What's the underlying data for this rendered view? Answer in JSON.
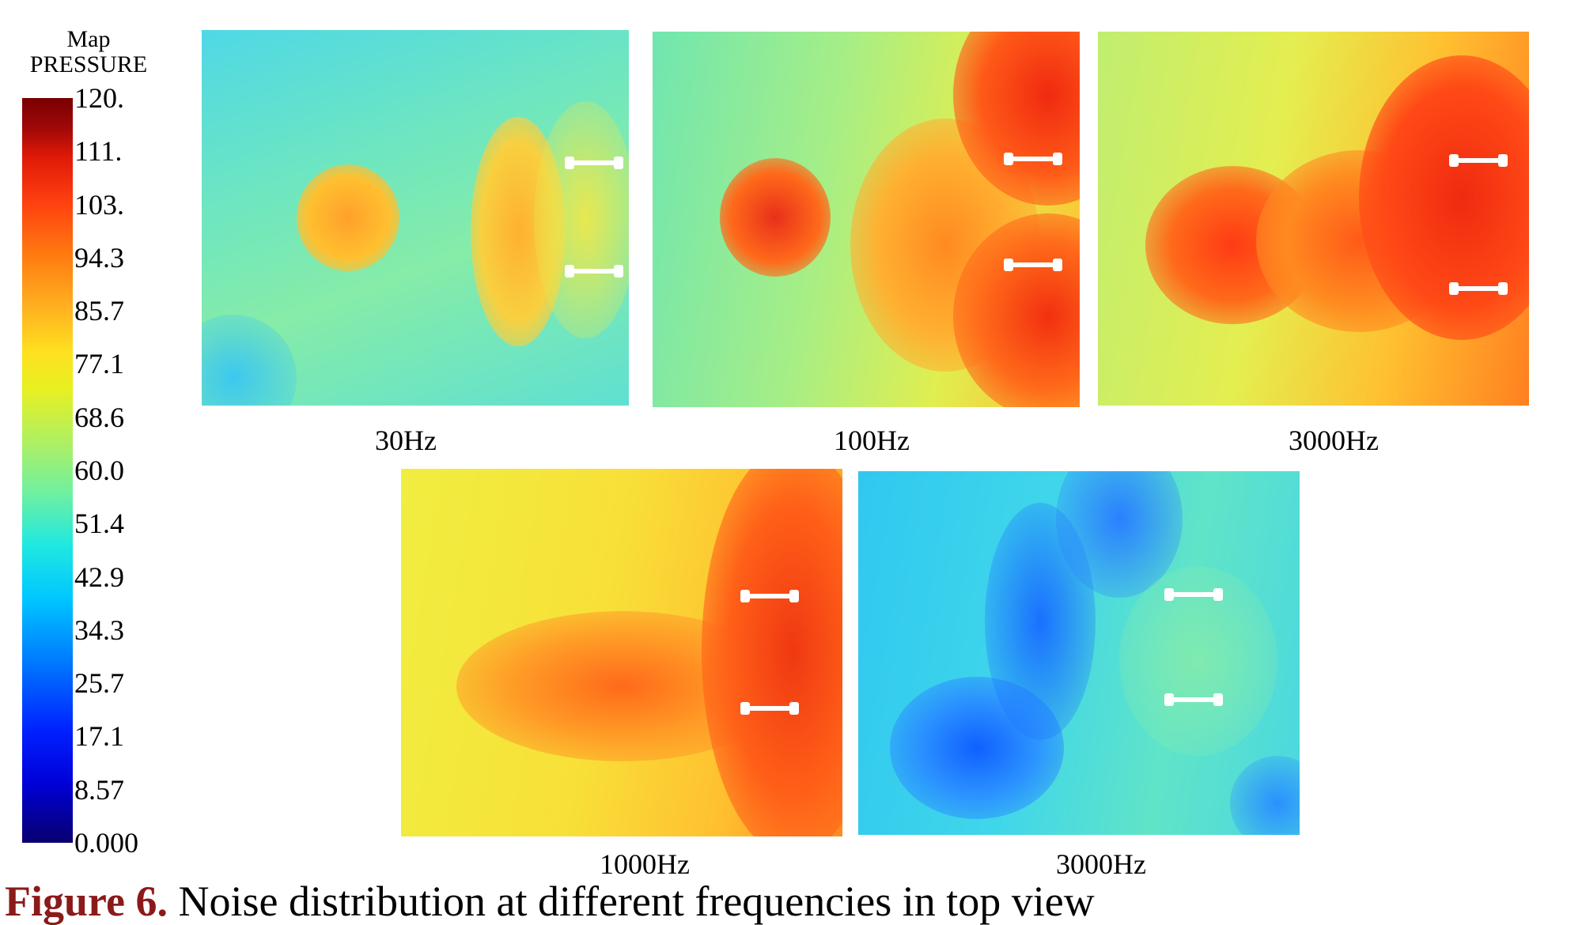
{
  "legend": {
    "title_line1": "Map",
    "title_line2": "PRESSURE",
    "ticks": [
      "120.",
      "111.",
      "103.",
      "94.3",
      "85.7",
      "77.1",
      "68.6",
      "60.0",
      "51.4",
      "42.9",
      "34.3",
      "25.7",
      "17.1",
      "8.57",
      "0.000"
    ],
    "colormap": "jet"
  },
  "panels": [
    {
      "label": "30Hz"
    },
    {
      "label": "100Hz"
    },
    {
      "label": "3000Hz"
    },
    {
      "label": "1000Hz"
    },
    {
      "label": "3000Hz"
    }
  ],
  "caption": {
    "label": "Figure 6.",
    "text": "Noise distribution at different frequencies in top view"
  },
  "colors": {
    "caption_label": "#8b1a1a"
  }
}
